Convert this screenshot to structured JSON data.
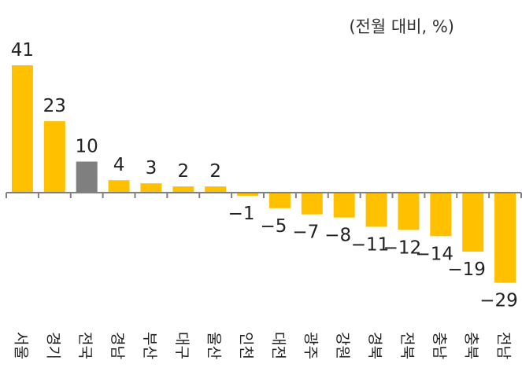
{
  "chart_data": {
    "type": "bar",
    "title": "",
    "unit_label": "(전월 대비, %)",
    "xlabel": "",
    "ylabel": "",
    "categories": [
      "서울",
      "경기",
      "전국",
      "경남",
      "부산",
      "대구",
      "울산",
      "인천",
      "대전",
      "광주",
      "강원",
      "경북",
      "전북",
      "충남",
      "충북",
      "전남"
    ],
    "values": [
      41,
      23,
      10,
      4,
      3,
      2,
      2,
      -1,
      -5,
      -7,
      -8,
      -11,
      -12,
      -14,
      -19,
      -29
    ],
    "value_labels": [
      "41",
      "23",
      "10",
      "4",
      "3",
      "2",
      "2",
      "−1",
      "−5",
      "−7",
      "−8",
      "−11",
      "−12",
      "−14",
      "−19",
      "−29"
    ],
    "highlight_category": "전국",
    "colors": {
      "default": "#FFC000",
      "highlight": "#7F7F7F",
      "axis": "#808080",
      "text": "#222222"
    },
    "grid": false,
    "legend": null,
    "ylim": [
      -29,
      41
    ],
    "x_label_orientation": "vertical"
  }
}
